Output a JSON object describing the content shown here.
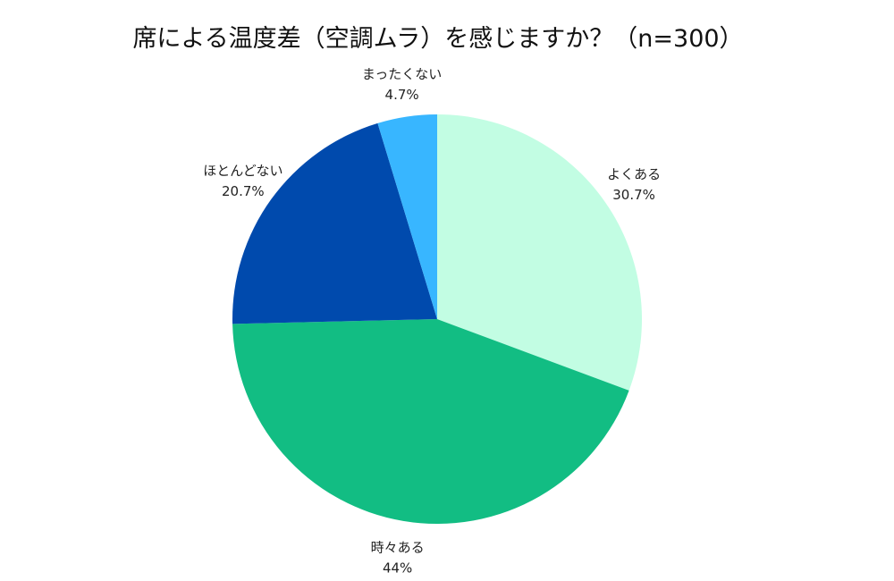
{
  "chart_data": {
    "type": "pie",
    "title": "席による温度差（空調ムラ）を感じますか？（n=300）",
    "slices": [
      {
        "label": "よくある",
        "value": 30.7,
        "value_label": "30.7%",
        "color": "#c2fde3"
      },
      {
        "label": "時々ある",
        "value": 44,
        "value_label": "44%",
        "color": "#12bd83"
      },
      {
        "label": "ほとんどない",
        "value": 20.7,
        "value_label": "20.7%",
        "color": "#004aad"
      },
      {
        "label": "まったくない",
        "value": 4.7,
        "value_label": "4.7%",
        "color": "#38b6ff"
      }
    ],
    "start_angle": "12 o'clock",
    "direction": "clockwise",
    "legend": "none"
  }
}
